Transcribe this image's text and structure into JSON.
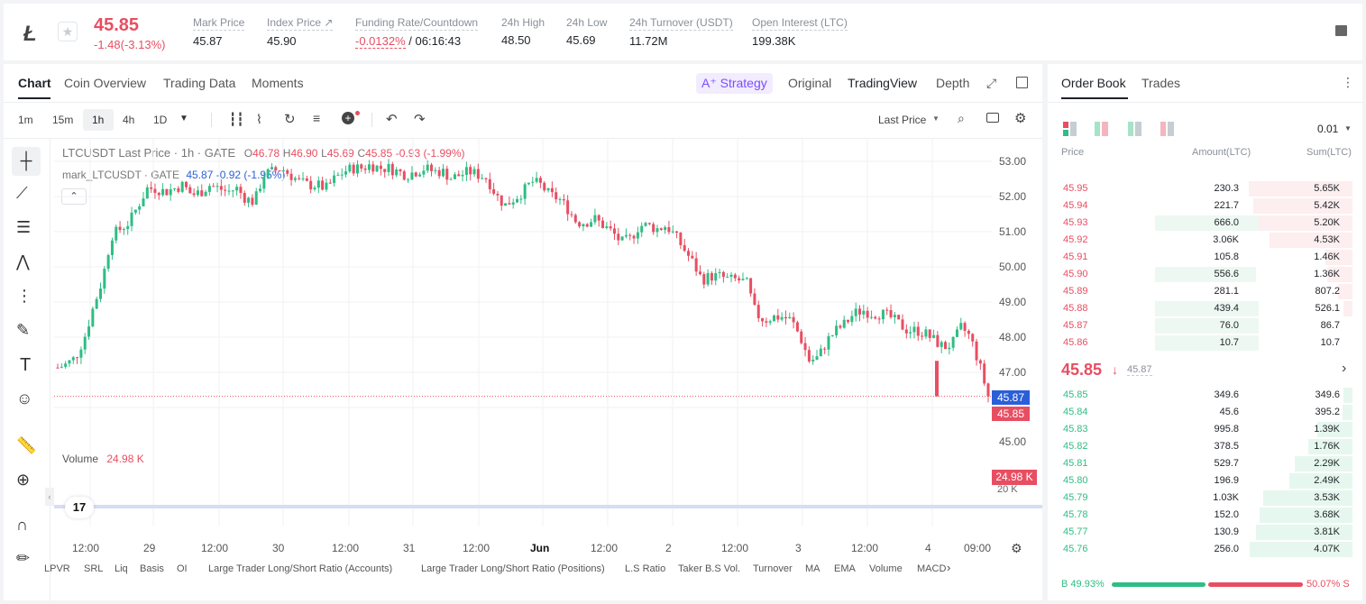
{
  "header": {
    "logo_icon": "litecoin-logo",
    "price": "45.85",
    "change": "-1.48(-3.13%)",
    "stats": [
      {
        "label": "Mark Price",
        "value": "45.87"
      },
      {
        "label": "Index Price ↗",
        "value": "45.90"
      },
      {
        "label": "Funding Rate/Countdown",
        "value_red": "-0.0132%",
        "value": "/ 06:16:43"
      },
      {
        "label": "24h High",
        "value": "48.50"
      },
      {
        "label": "24h Low",
        "value": "45.69"
      },
      {
        "label": "24h Turnover (USDT)",
        "value": "11.72M"
      },
      {
        "label": "Open Interest (LTC)",
        "value": "199.38K"
      }
    ]
  },
  "chart_tabs": [
    "Chart",
    "Coin Overview",
    "Trading Data",
    "Moments"
  ],
  "chart_modes": {
    "strategy": "A⁺ Strategy",
    "original": "Original",
    "tradingview": "TradingView",
    "depth": "Depth"
  },
  "intervals": [
    "1m",
    "15m",
    "1h",
    "4h",
    "1D"
  ],
  "active_interval": "1h",
  "price_type": "Last Price",
  "legend": {
    "main": "LTCUSDT Last Price · 1h · GATE",
    "o_label": "O",
    "o": "46.78",
    "h_label": "H",
    "h": "46.90",
    "l_label": "L",
    "l": "45.69",
    "c_label": "C",
    "c": "45.85",
    "chg": "-0.93 (-1.99%)",
    "mark": "mark_LTCUSDT · GATE",
    "mark_val": "45.87 -0.92 (-1.95%)",
    "volume_label": "Volume",
    "volume_val": "24.98 K"
  },
  "price_axis": [
    "53.00",
    "52.00",
    "51.00",
    "50.00",
    "49.00",
    "48.00",
    "47.00",
    "45.00"
  ],
  "price_tags": {
    "mark": "45.87",
    "last": "45.85",
    "volume": "24.98 K",
    "vol_axis": "20 K"
  },
  "time_axis": [
    "12:00",
    "29",
    "12:00",
    "30",
    "12:00",
    "31",
    "12:00",
    "Jun",
    "12:00",
    "2",
    "12:00",
    "3",
    "12:00",
    "4",
    "09:00"
  ],
  "indicators": [
    "LPVR",
    "SRL",
    "Liq",
    "Basis",
    "OI",
    "Large Trader Long/Short Ratio (Accounts)",
    "Large Trader Long/Short Ratio (Positions)",
    "L.S Ratio",
    "Taker B.S Vol.",
    "Turnover",
    "MA",
    "EMA",
    "Volume",
    "MACD"
  ],
  "chart_data": {
    "type": "candlestick",
    "title": "LTCUSDT Last Price · 1h · GATE",
    "ylim": [
      44.8,
      53.2
    ],
    "close_path_y": [
      46.7,
      46.8,
      47.0,
      47.6,
      48.5,
      49.3,
      50.6,
      50.8,
      51.0,
      51.5,
      52.0,
      52.0,
      51.9,
      52.0,
      52.1,
      51.8,
      51.9,
      52.1,
      52.0,
      51.9,
      52.0,
      51.7,
      51.6,
      52.4,
      52.5,
      52.6,
      52.4,
      52.2,
      52.1,
      52.1,
      52.0,
      52.3,
      52.5,
      52.6,
      52.6,
      52.7,
      52.6,
      52.6,
      52.5,
      52.4,
      52.5,
      52.6,
      52.5,
      52.5,
      52.3,
      52.4,
      52.5,
      52.4,
      52.3,
      51.8,
      51.5,
      51.7,
      51.9,
      52.2,
      52.1,
      51.8,
      51.7,
      51.4,
      51.0,
      51.0,
      51.1,
      50.9,
      50.7,
      50.4,
      50.5,
      50.9,
      50.9,
      50.8,
      50.9,
      50.6,
      50.2,
      49.8,
      49.3,
      49.4,
      49.4,
      49.3,
      49.3,
      49.2,
      48.3,
      48.1,
      48.2,
      48.2,
      48.1,
      47.6,
      46.9,
      47.0,
      47.5,
      47.8,
      48.0,
      48.3,
      48.4,
      48.3,
      48.3,
      48.2,
      48.0,
      47.8,
      47.8,
      47.7,
      47.5,
      47.3,
      47.4,
      47.9,
      47.6,
      46.8,
      45.85
    ]
  },
  "order_book": {
    "title": "Order Book",
    "trades": "Trades",
    "precision": "0.01",
    "cols": [
      "Price",
      "Amount(LTC)",
      "Sum(LTC)"
    ],
    "asks": [
      {
        "p": "45.95",
        "a": "230.3",
        "s": "5.65K",
        "ap": 0.0,
        "sp": 1.0
      },
      {
        "p": "45.94",
        "a": "221.7",
        "s": "5.42K",
        "ap": 0.0,
        "sp": 0.96
      },
      {
        "p": "45.93",
        "a": "666.0",
        "s": "5.20K",
        "ap": 0.62,
        "sp": 0.92
      },
      {
        "p": "45.92",
        "a": "3.06K",
        "s": "4.53K",
        "ap": 0.0,
        "sp": 0.8
      },
      {
        "p": "45.91",
        "a": "105.8",
        "s": "1.46K",
        "ap": 0.0,
        "sp": 0.26
      },
      {
        "p": "45.90",
        "a": "556.6",
        "s": "1.36K",
        "ap": 0.6,
        "sp": 0.24
      },
      {
        "p": "45.89",
        "a": "281.1",
        "s": "807.2",
        "ap": 0.0,
        "sp": 0.14
      },
      {
        "p": "45.88",
        "a": "439.4",
        "s": "526.1",
        "ap": 0.62,
        "sp": 0.09
      },
      {
        "p": "45.87",
        "a": "76.0",
        "s": "86.7",
        "ap": 0.62,
        "sp": 0.0
      },
      {
        "p": "45.86",
        "a": "10.7",
        "s": "10.7",
        "ap": 0.62,
        "sp": 0.0
      }
    ],
    "mid_price": "45.85",
    "mid_mark": "45.87",
    "bids": [
      {
        "p": "45.85",
        "a": "349.6",
        "s": "349.6",
        "sp": 0.09
      },
      {
        "p": "45.84",
        "a": "45.6",
        "s": "395.2",
        "sp": 0.1
      },
      {
        "p": "45.83",
        "a": "995.8",
        "s": "1.39K",
        "sp": 0.34
      },
      {
        "p": "45.82",
        "a": "378.5",
        "s": "1.76K",
        "sp": 0.43
      },
      {
        "p": "45.81",
        "a": "529.7",
        "s": "2.29K",
        "sp": 0.56
      },
      {
        "p": "45.80",
        "a": "196.9",
        "s": "2.49K",
        "sp": 0.61
      },
      {
        "p": "45.79",
        "a": "1.03K",
        "s": "3.53K",
        "sp": 0.87
      },
      {
        "p": "45.78",
        "a": "152.0",
        "s": "3.68K",
        "sp": 0.9
      },
      {
        "p": "45.77",
        "a": "130.9",
        "s": "3.81K",
        "sp": 0.94
      },
      {
        "p": "45.76",
        "a": "256.0",
        "s": "4.07K",
        "sp": 1.0
      }
    ],
    "buy_ratio": "49.93%",
    "sell_ratio": "50.07%",
    "buy_label": "B",
    "sell_label": "S"
  }
}
